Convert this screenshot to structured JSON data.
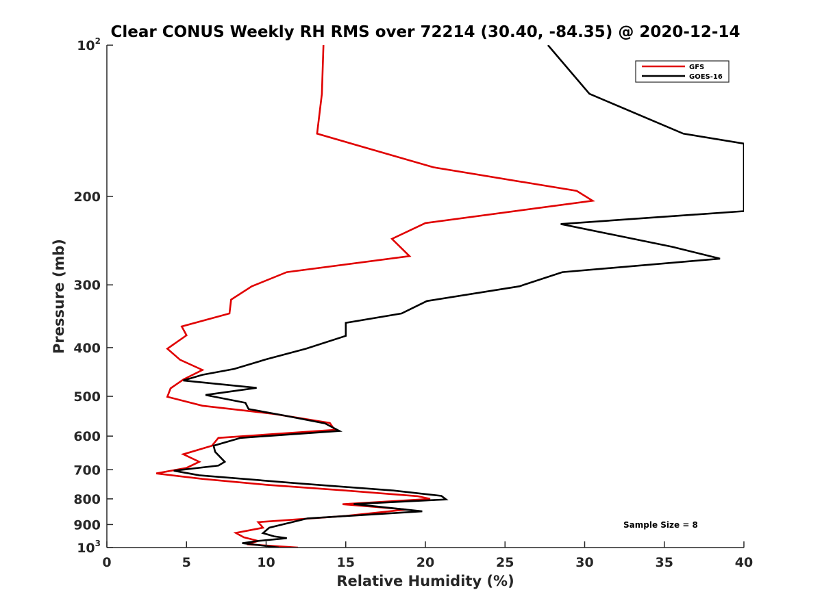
{
  "chart_data": {
    "type": "line",
    "title": "Clear CONUS Weekly RH RMS over 72214 (30.40, -84.35) @ 2020-12-14",
    "xlabel": "Relative Humidity (%)",
    "ylabel": "Pressure (mb)",
    "xlim": [
      0,
      40
    ],
    "ylim": [
      100,
      1000
    ],
    "y_scale": "log",
    "y_reversed": true,
    "x_ticks": [
      "0",
      "5",
      "10",
      "15",
      "20",
      "25",
      "30",
      "35",
      "40"
    ],
    "y_ticks": [
      {
        "value": 100,
        "base": "10",
        "exp": "2"
      },
      {
        "value": 200,
        "label": "200"
      },
      {
        "value": 300,
        "label": "300"
      },
      {
        "value": 400,
        "label": "400"
      },
      {
        "value": 500,
        "label": "500"
      },
      {
        "value": 600,
        "label": "600"
      },
      {
        "value": 700,
        "label": "700"
      },
      {
        "value": 800,
        "label": "800"
      },
      {
        "value": 900,
        "label": "900"
      },
      {
        "value": 1000,
        "base": "10",
        "exp": "3"
      }
    ],
    "legend_position": "top-right",
    "annotation": "Sample Size = 8",
    "series": [
      {
        "name": "GFS",
        "color": "#e00000",
        "points": [
          [
            13.6,
            100
          ],
          [
            13.5,
            125
          ],
          [
            13.2,
            150
          ],
          [
            20.5,
            175
          ],
          [
            29.5,
            195
          ],
          [
            30.5,
            204
          ],
          [
            20.0,
            226
          ],
          [
            17.9,
            243
          ],
          [
            19.0,
            263
          ],
          [
            11.3,
            283
          ],
          [
            9.1,
            302
          ],
          [
            7.8,
            321
          ],
          [
            7.7,
            342
          ],
          [
            4.7,
            363
          ],
          [
            5.0,
            378
          ],
          [
            3.8,
            402
          ],
          [
            4.6,
            423
          ],
          [
            6.0,
            443
          ],
          [
            4.8,
            463
          ],
          [
            4.0,
            482
          ],
          [
            3.8,
            501
          ],
          [
            6.0,
            522
          ],
          [
            10.5,
            542
          ],
          [
            14.0,
            565
          ],
          [
            14.3,
            583
          ],
          [
            7.0,
            605
          ],
          [
            6.6,
            627
          ],
          [
            4.8,
            652
          ],
          [
            5.8,
            675
          ],
          [
            5.0,
            694
          ],
          [
            3.1,
            712
          ],
          [
            6.0,
            730
          ],
          [
            10.0,
            750
          ],
          [
            15.0,
            770
          ],
          [
            19.5,
            790
          ],
          [
            20.3,
            800
          ],
          [
            14.8,
            820
          ],
          [
            18.8,
            840
          ],
          [
            15.0,
            865
          ],
          [
            9.5,
            890
          ],
          [
            9.8,
            913
          ],
          [
            8.1,
            935
          ],
          [
            8.6,
            954
          ],
          [
            9.5,
            970
          ],
          [
            8.8,
            985
          ],
          [
            12.0,
            1000
          ]
        ]
      },
      {
        "name": "GOES-16",
        "color": "#000000",
        "points": [
          [
            27.7,
            100
          ],
          [
            30.3,
            125
          ],
          [
            36.2,
            150
          ],
          [
            40.0,
            157
          ],
          [
            40.0,
            214
          ],
          [
            28.5,
            227
          ],
          [
            35.5,
            252
          ],
          [
            38.5,
            266
          ],
          [
            28.6,
            283
          ],
          [
            25.9,
            302
          ],
          [
            20.1,
            323
          ],
          [
            18.5,
            342
          ],
          [
            15.0,
            357
          ],
          [
            15.0,
            379
          ],
          [
            12.5,
            402
          ],
          [
            10.0,
            422
          ],
          [
            8.0,
            441
          ],
          [
            6.0,
            453
          ],
          [
            4.8,
            465
          ],
          [
            9.4,
            481
          ],
          [
            6.2,
            497
          ],
          [
            8.7,
            515
          ],
          [
            8.9,
            530
          ],
          [
            11.0,
            545
          ],
          [
            13.7,
            566
          ],
          [
            14.6,
            586
          ],
          [
            8.4,
            605
          ],
          [
            6.7,
            627
          ],
          [
            6.8,
            645
          ],
          [
            7.4,
            675
          ],
          [
            7.0,
            687
          ],
          [
            4.2,
            703
          ],
          [
            5.8,
            718
          ],
          [
            12.0,
            745
          ],
          [
            18.0,
            770
          ],
          [
            21.0,
            789
          ],
          [
            21.3,
            802
          ],
          [
            15.5,
            819
          ],
          [
            19.8,
            847
          ],
          [
            12.6,
            875
          ],
          [
            10.2,
            913
          ],
          [
            9.8,
            936
          ],
          [
            10.5,
            950
          ],
          [
            11.3,
            958
          ],
          [
            9.5,
            970
          ],
          [
            8.5,
            980
          ],
          [
            10.8,
            1000
          ]
        ]
      }
    ]
  }
}
